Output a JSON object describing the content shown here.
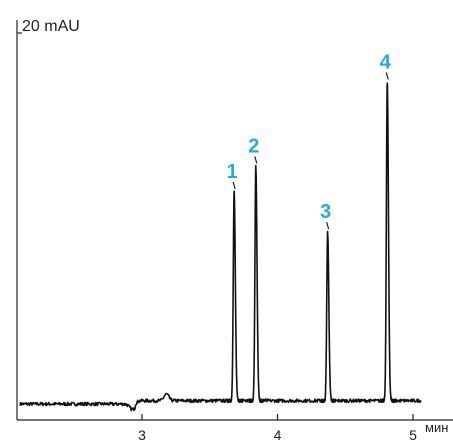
{
  "chart_data": {
    "type": "line",
    "ylabel": "20 mAU",
    "x_unit_label": "мин",
    "xlim": [
      2.1,
      5.3
    ],
    "x_ticks": [
      3,
      4,
      5
    ],
    "x_tick_labels": [
      "3",
      "4",
      "5"
    ],
    "y_unit": "mAU",
    "ylim": [
      -3,
      96
    ],
    "y_scale_bar_value": 20,
    "grid": false,
    "baseline": 0,
    "trace_color": "#111111",
    "peak_label_color": "#29a8dc",
    "peaks": [
      {
        "label": "1",
        "retention_min": 3.68,
        "height_mau": 57
      },
      {
        "label": "2",
        "retention_min": 3.84,
        "height_mau": 64
      },
      {
        "label": "3",
        "retention_min": 4.37,
        "height_mau": 46
      },
      {
        "label": "4",
        "retention_min": 4.81,
        "height_mau": 87
      }
    ],
    "baseline_features": [
      {
        "x_min": 2.93,
        "value_mau": -1.5,
        "kind": "dip"
      },
      {
        "x_min": 3.18,
        "value_mau": 1.8,
        "kind": "bump"
      }
    ]
  }
}
